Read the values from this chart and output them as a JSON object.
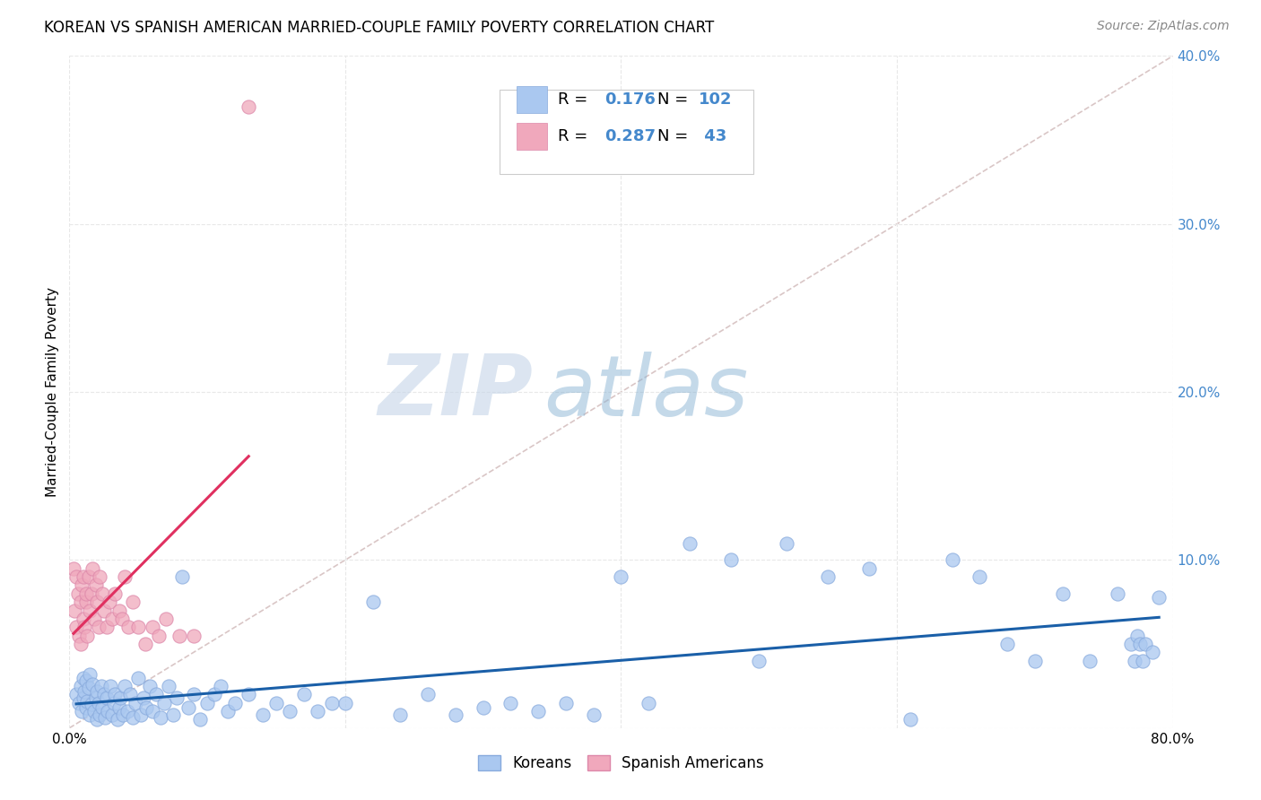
{
  "title": "KOREAN VS SPANISH AMERICAN MARRIED-COUPLE FAMILY POVERTY CORRELATION CHART",
  "source": "Source: ZipAtlas.com",
  "ylabel": "Married-Couple Family Poverty",
  "watermark_zip": "ZIP",
  "watermark_atlas": "atlas",
  "legend_korean_R": "0.176",
  "legend_korean_N": "102",
  "legend_spanish_R": "0.287",
  "legend_spanish_N": "43",
  "xlim": [
    0.0,
    0.8
  ],
  "ylim": [
    0.0,
    0.4
  ],
  "xticks": [
    0.0,
    0.2,
    0.4,
    0.6,
    0.8
  ],
  "yticks": [
    0.0,
    0.1,
    0.2,
    0.3,
    0.4
  ],
  "korean_color": "#aac8f0",
  "korean_edge_color": "#88aadd",
  "spanish_color": "#f0a8bc",
  "spanish_edge_color": "#dd88aa",
  "korean_line_color": "#1a5fa8",
  "spanish_line_color": "#e03060",
  "diagonal_color": "#d0b8b8",
  "background_color": "#ffffff",
  "grid_color": "#e8e8e8",
  "tick_color_right": "#4488cc",
  "title_fontsize": 12,
  "source_fontsize": 10,
  "ylabel_fontsize": 11,
  "tick_fontsize": 11,
  "koreans_x": [
    0.005,
    0.007,
    0.008,
    0.009,
    0.01,
    0.01,
    0.011,
    0.012,
    0.012,
    0.013,
    0.014,
    0.015,
    0.015,
    0.016,
    0.017,
    0.018,
    0.019,
    0.02,
    0.02,
    0.021,
    0.022,
    0.023,
    0.024,
    0.025,
    0.026,
    0.027,
    0.028,
    0.03,
    0.031,
    0.032,
    0.033,
    0.035,
    0.036,
    0.037,
    0.039,
    0.04,
    0.042,
    0.044,
    0.046,
    0.048,
    0.05,
    0.052,
    0.054,
    0.056,
    0.058,
    0.06,
    0.063,
    0.066,
    0.069,
    0.072,
    0.075,
    0.078,
    0.082,
    0.086,
    0.09,
    0.095,
    0.1,
    0.105,
    0.11,
    0.115,
    0.12,
    0.13,
    0.14,
    0.15,
    0.16,
    0.17,
    0.18,
    0.19,
    0.2,
    0.22,
    0.24,
    0.26,
    0.28,
    0.3,
    0.32,
    0.34,
    0.36,
    0.38,
    0.4,
    0.42,
    0.45,
    0.48,
    0.5,
    0.52,
    0.55,
    0.58,
    0.61,
    0.64,
    0.66,
    0.68,
    0.7,
    0.72,
    0.74,
    0.76,
    0.77,
    0.772,
    0.774,
    0.776,
    0.778,
    0.78,
    0.785,
    0.79
  ],
  "koreans_y": [
    0.02,
    0.015,
    0.025,
    0.01,
    0.03,
    0.018,
    0.022,
    0.012,
    0.028,
    0.016,
    0.024,
    0.008,
    0.032,
    0.014,
    0.026,
    0.01,
    0.018,
    0.005,
    0.022,
    0.015,
    0.008,
    0.025,
    0.012,
    0.02,
    0.006,
    0.018,
    0.01,
    0.025,
    0.008,
    0.015,
    0.02,
    0.005,
    0.012,
    0.018,
    0.008,
    0.025,
    0.01,
    0.02,
    0.006,
    0.015,
    0.03,
    0.008,
    0.018,
    0.012,
    0.025,
    0.01,
    0.02,
    0.006,
    0.015,
    0.025,
    0.008,
    0.018,
    0.09,
    0.012,
    0.02,
    0.005,
    0.015,
    0.02,
    0.025,
    0.01,
    0.015,
    0.02,
    0.008,
    0.015,
    0.01,
    0.02,
    0.01,
    0.015,
    0.015,
    0.075,
    0.008,
    0.02,
    0.008,
    0.012,
    0.015,
    0.01,
    0.015,
    0.008,
    0.09,
    0.015,
    0.11,
    0.1,
    0.04,
    0.11,
    0.09,
    0.095,
    0.005,
    0.1,
    0.09,
    0.05,
    0.04,
    0.08,
    0.04,
    0.08,
    0.05,
    0.04,
    0.055,
    0.05,
    0.04,
    0.05,
    0.045,
    0.078
  ],
  "spanish_x": [
    0.003,
    0.004,
    0.005,
    0.005,
    0.006,
    0.007,
    0.008,
    0.008,
    0.009,
    0.01,
    0.01,
    0.011,
    0.012,
    0.012,
    0.013,
    0.014,
    0.015,
    0.016,
    0.017,
    0.018,
    0.019,
    0.02,
    0.021,
    0.022,
    0.024,
    0.025,
    0.027,
    0.029,
    0.031,
    0.033,
    0.036,
    0.038,
    0.04,
    0.043,
    0.046,
    0.05,
    0.055,
    0.06,
    0.065,
    0.07,
    0.08,
    0.09,
    0.13
  ],
  "spanish_y": [
    0.095,
    0.07,
    0.09,
    0.06,
    0.08,
    0.055,
    0.075,
    0.05,
    0.085,
    0.065,
    0.09,
    0.06,
    0.075,
    0.08,
    0.055,
    0.09,
    0.07,
    0.08,
    0.095,
    0.065,
    0.085,
    0.075,
    0.06,
    0.09,
    0.08,
    0.07,
    0.06,
    0.075,
    0.065,
    0.08,
    0.07,
    0.065,
    0.09,
    0.06,
    0.075,
    0.06,
    0.05,
    0.06,
    0.055,
    0.065,
    0.055,
    0.055,
    0.37
  ]
}
